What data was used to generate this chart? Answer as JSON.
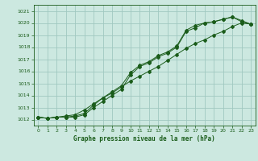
{
  "title": "Graphe pression niveau de la mer (hPa)",
  "xlim": [
    -0.5,
    23.5
  ],
  "ylim": [
    1011.5,
    1021.5
  ],
  "yticks": [
    1012,
    1013,
    1014,
    1015,
    1016,
    1017,
    1018,
    1019,
    1020,
    1021
  ],
  "xticks": [
    0,
    1,
    2,
    3,
    4,
    5,
    6,
    7,
    8,
    9,
    10,
    11,
    12,
    13,
    14,
    15,
    16,
    17,
    18,
    19,
    20,
    21,
    22,
    23
  ],
  "bg_color": "#cce8e0",
  "grid_color": "#a0c8c0",
  "line_color": "#1a5c1a",
  "line1_x": [
    0,
    1,
    2,
    3,
    4,
    5,
    6,
    7,
    8,
    9,
    10,
    11,
    12,
    13,
    14,
    15,
    16,
    17,
    18,
    19,
    20,
    21,
    22,
    23
  ],
  "line1_y": [
    1012.2,
    1012.1,
    1012.2,
    1012.2,
    1012.2,
    1012.4,
    1013.0,
    1013.5,
    1014.0,
    1014.5,
    1015.7,
    1016.4,
    1016.7,
    1017.2,
    1017.5,
    1018.0,
    1019.3,
    1019.6,
    1020.0,
    1020.1,
    1020.3,
    1020.5,
    1020.2,
    1019.9
  ],
  "line2_x": [
    0,
    1,
    2,
    3,
    4,
    5,
    6,
    7,
    8,
    9,
    10,
    11,
    12,
    13,
    14,
    15,
    16,
    17,
    18,
    19,
    20,
    21,
    22,
    23
  ],
  "line2_y": [
    1012.2,
    1012.1,
    1012.2,
    1012.2,
    1012.3,
    1012.5,
    1013.2,
    1013.8,
    1014.3,
    1014.8,
    1015.9,
    1016.5,
    1016.8,
    1017.3,
    1017.6,
    1018.1,
    1019.4,
    1019.8,
    1020.0,
    1020.1,
    1020.3,
    1020.5,
    1020.1,
    1019.9
  ],
  "line3_x": [
    0,
    1,
    2,
    3,
    4,
    5,
    6,
    7,
    8,
    9,
    10,
    11,
    12,
    13,
    14,
    15,
    16,
    17,
    18,
    19,
    20,
    21,
    22,
    23
  ],
  "line3_y": [
    1012.2,
    1012.1,
    1012.2,
    1012.3,
    1012.4,
    1012.8,
    1013.3,
    1013.8,
    1014.2,
    1014.7,
    1015.2,
    1015.6,
    1016.0,
    1016.4,
    1016.9,
    1017.4,
    1017.9,
    1018.3,
    1018.6,
    1019.0,
    1019.3,
    1019.7,
    1020.0,
    1019.9
  ]
}
